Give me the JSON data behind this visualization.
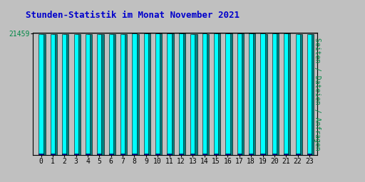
{
  "title": "Stunden-Statistik im Monat November 2021",
  "title_color": "#0000cc",
  "title_fontsize": 9,
  "ylabel_right": "Seiten / Dateien / Anfragen",
  "ylabel_right_color": "#008844",
  "ylabel_right_fontsize": 7,
  "ytick_label": "21459",
  "ytick_color": "#008844",
  "ytick_fontsize": 7,
  "background_color": "#c0c0c0",
  "plot_bg_color": "#c0c0c0",
  "bar_color_cyan": "#00ffff",
  "bar_color_teal": "#008080",
  "bar_color_blue": "#0000bb",
  "hours": [
    0,
    1,
    2,
    3,
    4,
    5,
    6,
    7,
    8,
    9,
    10,
    11,
    12,
    13,
    14,
    15,
    16,
    17,
    18,
    19,
    20,
    21,
    22,
    23
  ],
  "values_cyan": [
    21380,
    21370,
    21390,
    21400,
    21390,
    21370,
    21375,
    21340,
    21430,
    21460,
    21480,
    21459,
    21470,
    21410,
    21425,
    21465,
    21465,
    21450,
    21445,
    21425,
    21455,
    21455,
    21390,
    21415
  ],
  "values_teal": [
    21370,
    21360,
    21380,
    21390,
    21380,
    21360,
    21365,
    21330,
    21420,
    21450,
    21470,
    21449,
    21460,
    21400,
    21415,
    21455,
    21455,
    21440,
    21435,
    21415,
    21445,
    21445,
    21380,
    21405
  ],
  "values_blue": [
    200,
    200,
    200,
    200,
    200,
    200,
    200,
    200,
    200,
    200,
    200,
    200,
    200,
    200,
    200,
    200,
    200,
    200,
    200,
    200,
    200,
    200,
    200,
    200
  ],
  "ylim_min": 0,
  "ylim_max": 21600,
  "ytick_value": 21459,
  "figsize": [
    5.12,
    2.56
  ],
  "dpi": 100
}
